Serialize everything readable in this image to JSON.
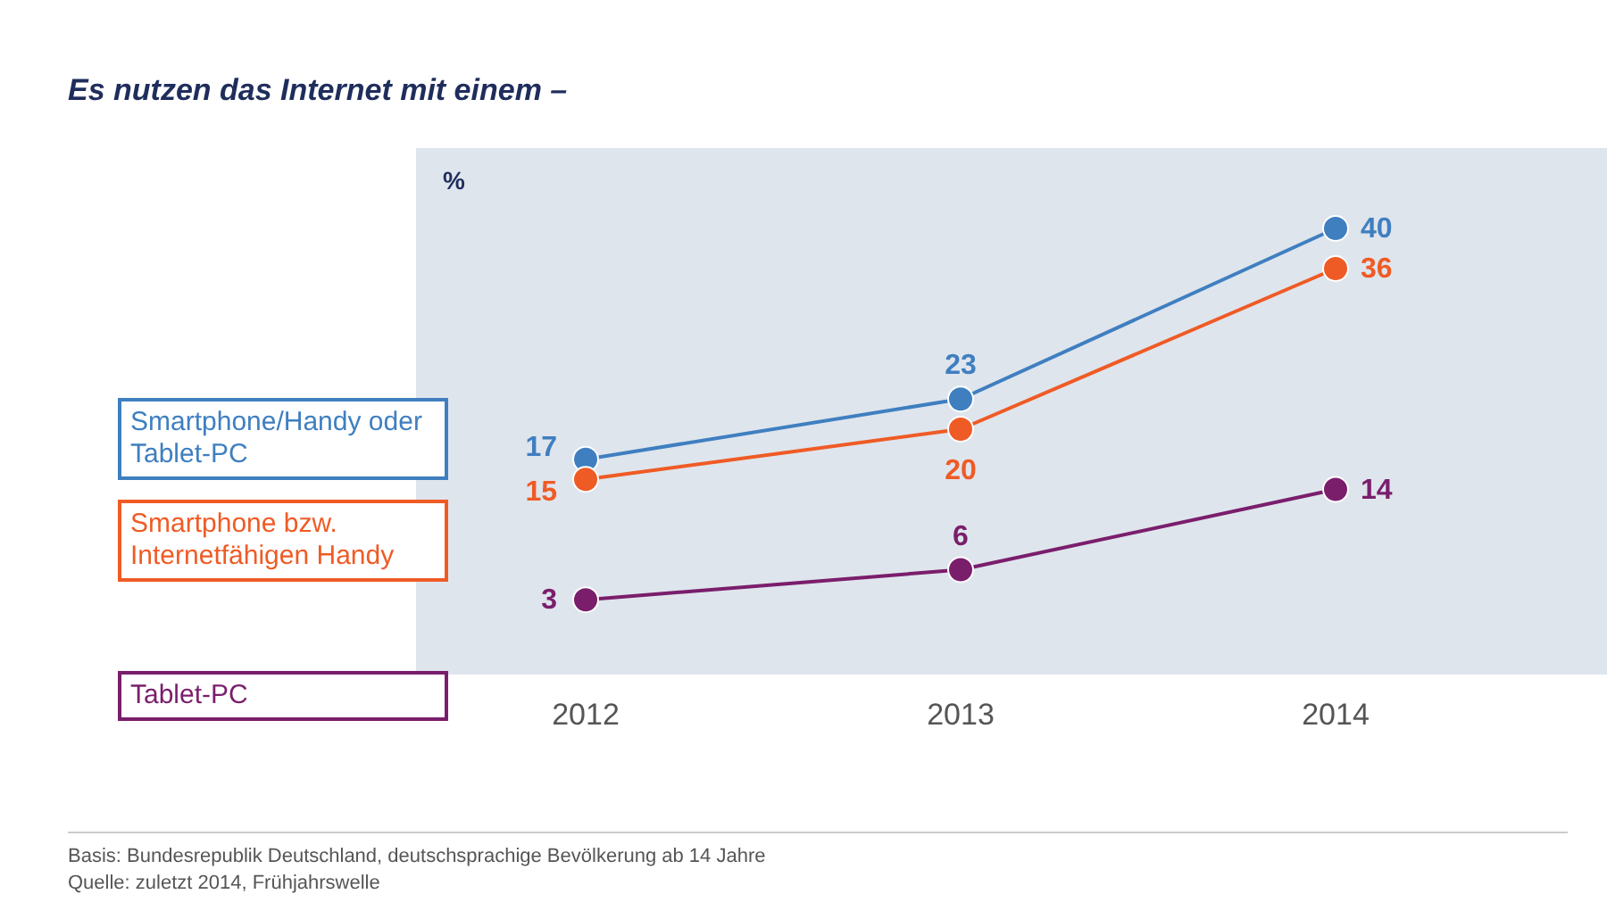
{
  "chart_data": {
    "type": "line",
    "title": "Es nutzen das Internet mit einem –",
    "ylabel": "%",
    "categories": [
      "2012",
      "2013",
      "2014"
    ],
    "series": [
      {
        "name": "Smartphone/Handy oder Tablet-PC",
        "color": "#3f7fc0",
        "values": [
          17,
          23,
          40
        ]
      },
      {
        "name": "Smartphone bzw. Internetfähigen Handy",
        "color": "#ef5b25",
        "values": [
          15,
          20,
          36
        ]
      },
      {
        "name": "Tablet-PC",
        "color": "#7a1e6c",
        "values": [
          3,
          6,
          14
        ]
      }
    ],
    "data_labels": true,
    "marker": "circle",
    "legend": "left",
    "annotations": [
      "Basis: Bundesrepublik Deutschland, deutschsprachige Bevölkerung ab 14 Jahre",
      "Quelle: zuletzt 2014, Frühjahrswelle"
    ]
  }
}
